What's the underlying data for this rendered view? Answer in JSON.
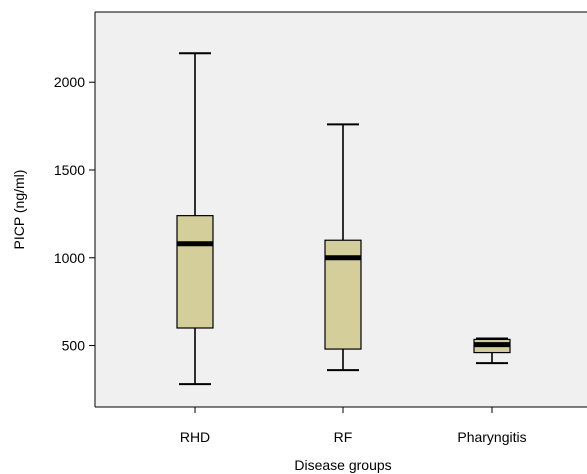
{
  "chart_data": {
    "type": "box",
    "xlabel": "Disease groups",
    "ylabel": "PICP (ng/ml)",
    "ylim": [
      150,
      2400
    ],
    "yticks": [
      500,
      1000,
      1500,
      2000
    ],
    "categories": [
      "RHD",
      "RF",
      "Pharyngitis"
    ],
    "boxes": [
      {
        "name": "RHD",
        "min": 280,
        "q1": 600,
        "median": 1080,
        "q3": 1240,
        "max": 2165
      },
      {
        "name": "RF",
        "min": 360,
        "q1": 480,
        "median": 1000,
        "q3": 1100,
        "max": 1760
      },
      {
        "name": "Pharyngitis",
        "min": 400,
        "q1": 460,
        "median": 505,
        "q3": 535,
        "max": 540
      }
    ],
    "grid": false,
    "colors": {
      "plot_background": "#f0f0f0",
      "box_fill": "#d3ce9a",
      "line": "#000000"
    }
  }
}
